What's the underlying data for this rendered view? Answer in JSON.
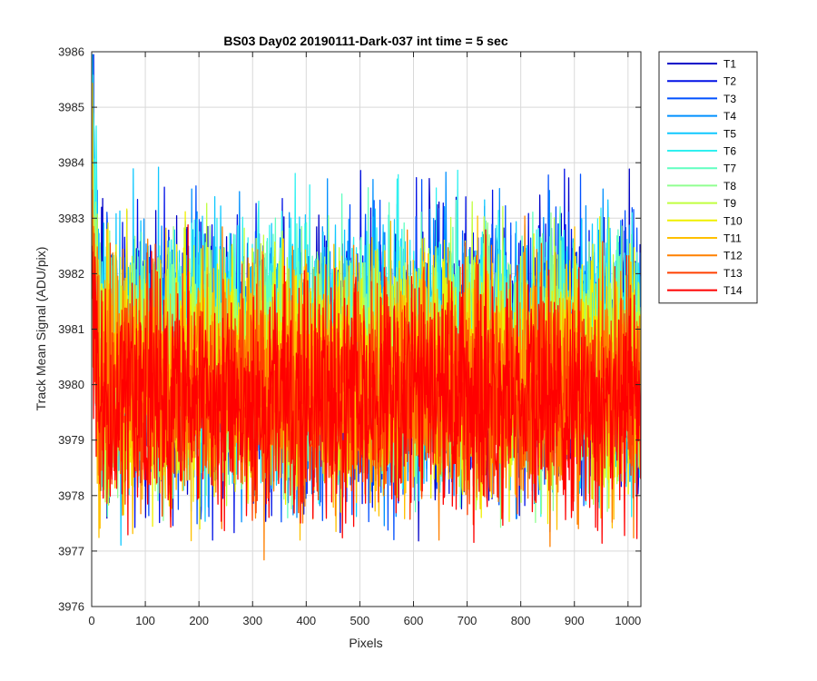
{
  "chart_data": {
    "type": "line",
    "title": "BS03 Day02 20190111-Dark-037 int time = 5 sec",
    "xlabel": "Pixels",
    "ylabel": "Track Mean Signal (ADU/pix)",
    "xlim": [
      0,
      1024
    ],
    "ylim": [
      3976,
      3986
    ],
    "xticks": [
      0,
      100,
      200,
      300,
      400,
      500,
      600,
      700,
      800,
      900,
      1000
    ],
    "yticks": [
      3976,
      3977,
      3978,
      3979,
      3980,
      3981,
      3982,
      3983,
      3984,
      3985,
      3986
    ],
    "grid": true,
    "legend_position": "outside-top-right",
    "n_points_per_series": 1024,
    "series": [
      {
        "name": "T1",
        "color": "#0000c8",
        "mean": 3980.5,
        "noise": 1.35
      },
      {
        "name": "T2",
        "color": "#0010e6",
        "mean": 3980.4,
        "noise": 1.32
      },
      {
        "name": "T3",
        "color": "#0050ff",
        "mean": 3980.5,
        "noise": 1.3
      },
      {
        "name": "T4",
        "color": "#0090ff",
        "mean": 3980.5,
        "noise": 1.28
      },
      {
        "name": "T5",
        "color": "#10c8ff",
        "mean": 3980.6,
        "noise": 1.28
      },
      {
        "name": "T6",
        "color": "#30f0f0",
        "mean": 3980.6,
        "noise": 1.25
      },
      {
        "name": "T7",
        "color": "#60ffc0",
        "mean": 3980.5,
        "noise": 1.22
      },
      {
        "name": "T8",
        "color": "#90ff90",
        "mean": 3980.4,
        "noise": 1.22
      },
      {
        "name": "T9",
        "color": "#c0ff40",
        "mean": 3980.3,
        "noise": 1.2
      },
      {
        "name": "T10",
        "color": "#f0f000",
        "mean": 3980.2,
        "noise": 1.2
      },
      {
        "name": "T11",
        "color": "#ffc000",
        "mean": 3980.1,
        "noise": 1.18
      },
      {
        "name": "T12",
        "color": "#ff8000",
        "mean": 3980.0,
        "noise": 1.15
      },
      {
        "name": "T13",
        "color": "#ff4000",
        "mean": 3979.8,
        "noise": 1.12
      },
      {
        "name": "T14",
        "color": "#ff0000",
        "mean": 3979.7,
        "noise": 1.1
      }
    ]
  }
}
